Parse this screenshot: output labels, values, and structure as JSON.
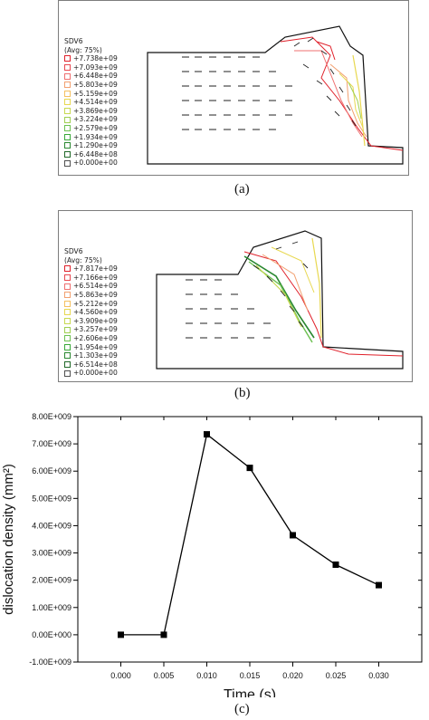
{
  "figure": {
    "panel_a": {
      "legend_title": "SDV6",
      "legend_avg": "(Avg: 75%)",
      "legend_values": [
        "+7.738e+09",
        "+7.093e+09",
        "+6.448e+09",
        "+5.803e+09",
        "+5.159e+09",
        "+4.514e+09",
        "+3.869e+09",
        "+3.224e+09",
        "+2.579e+09",
        "+1.934e+09",
        "+1.290e+09",
        "+6.448e+08",
        "+0.000e+00"
      ],
      "caption": "(a)"
    },
    "panel_b": {
      "legend_title": "SDV6",
      "legend_avg": "(Avg: 75%)",
      "legend_values": [
        "+7.817e+09",
        "+7.166e+09",
        "+6.514e+09",
        "+5.863e+09",
        "+5.212e+09",
        "+4.560e+09",
        "+3.909e+09",
        "+3.257e+09",
        "+2.606e+09",
        "+1.954e+09",
        "+1.303e+09",
        "+6.514e+08",
        "+0.000e+00"
      ],
      "caption": "(b)"
    },
    "panel_c": {
      "caption": "(c)"
    },
    "contour_colors": [
      "#e0202a",
      "#e84850",
      "#ef7070",
      "#f2a070",
      "#f5c060",
      "#e8d850",
      "#c8d850",
      "#9fd050",
      "#6cc050",
      "#38a838",
      "#2a8830",
      "#206828",
      "#505050"
    ]
  },
  "chart_data": {
    "type": "line",
    "xlabel": "Time  (s)",
    "ylabel": "dislocation density  (mm²)",
    "x": [
      0.0,
      0.005,
      0.01,
      0.015,
      0.02,
      0.025,
      0.03
    ],
    "y": [
      0.0,
      0.0,
      7350000000.0,
      6120000000.0,
      3650000000.0,
      2570000000.0,
      1820000000.0
    ],
    "xlim": [
      -0.005,
      0.035
    ],
    "ylim": [
      -1000000000.0,
      8000000000.0
    ],
    "xticks": [
      0.0,
      0.005,
      0.01,
      0.015,
      0.02,
      0.025,
      0.03
    ],
    "xtick_labels": [
      "0.000",
      "0.005",
      "0.010",
      "0.015",
      "0.020",
      "0.025",
      "0.030"
    ],
    "yticks": [
      -1000000000.0,
      0.0,
      1000000000.0,
      2000000000.0,
      3000000000.0,
      4000000000.0,
      5000000000.0,
      6000000000.0,
      7000000000.0,
      8000000000.0
    ],
    "ytick_labels": [
      "-1.00E+009",
      "0.00E+000",
      "1.00E+009",
      "2.00E+009",
      "3.00E+009",
      "4.00E+009",
      "5.00E+009",
      "6.00E+009",
      "7.00E+009",
      "8.00E+009"
    ],
    "marker": "square",
    "color": "#000000"
  }
}
